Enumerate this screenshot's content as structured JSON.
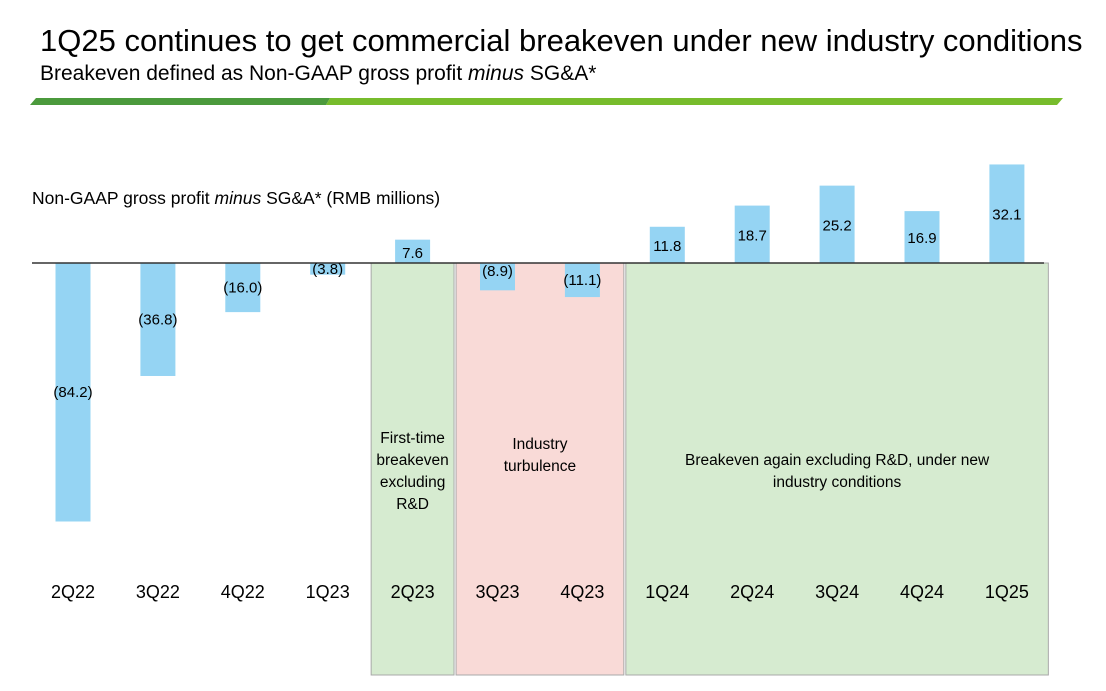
{
  "header": {
    "title": "1Q25 continues to get commercial breakeven under new industry conditions",
    "subtitle_prefix": "Breakeven defined as Non-GAAP gross profit ",
    "subtitle_emph": "minus",
    "subtitle_suffix": " SG&A*"
  },
  "colors": {
    "bar": "#95d4f3",
    "rule_dark": "#4b9a3c",
    "rule_light": "#77bc2c",
    "band_green": "#d6ebd0",
    "band_red": "#f9dad7",
    "band_border": "#a8a8a8"
  },
  "chart_data": {
    "type": "bar",
    "label_prefix": "Non-GAAP gross profit ",
    "label_emph": "minus",
    "label_suffix": " SG&A* (RMB millions)",
    "categories": [
      "2Q22",
      "3Q22",
      "4Q22",
      "1Q23",
      "2Q23",
      "3Q23",
      "4Q23",
      "1Q24",
      "2Q24",
      "3Q24",
      "4Q24",
      "1Q25"
    ],
    "values": [
      -84.2,
      -36.8,
      -16.0,
      -3.8,
      7.6,
      -8.9,
      -11.1,
      11.8,
      18.7,
      25.2,
      16.9,
      32.1
    ],
    "value_labels": [
      "(84.2)",
      "(36.8)",
      "(16.0)",
      "(3.8)",
      "7.6",
      "(8.9)",
      "(11.1)",
      "11.8",
      "18.7",
      "25.2",
      "16.9",
      "32.1"
    ],
    "bands": [
      {
        "from": "2Q23",
        "to": "2Q23",
        "color": "green",
        "lines": [
          "First-time",
          "breakeven",
          "excluding",
          "R&D"
        ]
      },
      {
        "from": "3Q23",
        "to": "4Q23",
        "color": "red",
        "lines": [
          "Industry",
          "turbulence"
        ]
      },
      {
        "from": "1Q24",
        "to": "1Q25",
        "color": "green",
        "lines": [
          "Breakeven again excluding R&D, under new",
          "industry conditions"
        ]
      }
    ]
  }
}
